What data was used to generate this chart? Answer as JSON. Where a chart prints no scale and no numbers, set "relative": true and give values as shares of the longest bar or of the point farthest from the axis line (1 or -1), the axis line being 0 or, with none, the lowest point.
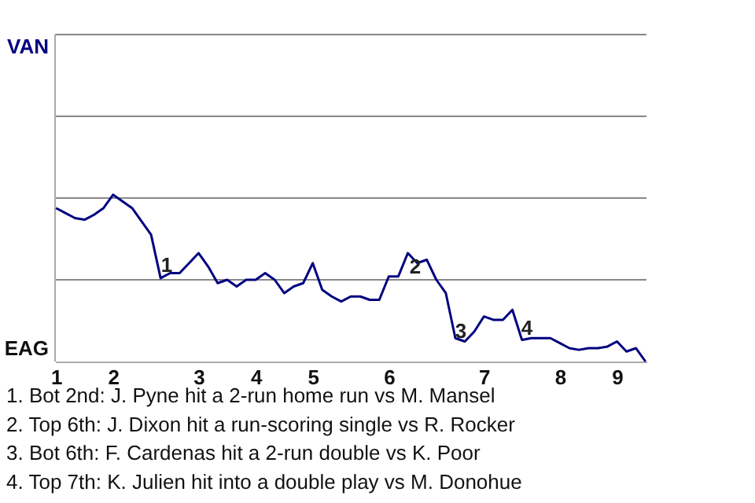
{
  "chart_data": {
    "type": "line",
    "categories": [
      "1",
      null,
      null,
      null,
      null,
      null,
      "2",
      null,
      null,
      null,
      null,
      null,
      null,
      null,
      null,
      "3",
      null,
      null,
      null,
      null,
      null,
      "4",
      null,
      null,
      null,
      null,
      null,
      "5",
      null,
      null,
      null,
      null,
      null,
      null,
      null,
      "6",
      null,
      null,
      null,
      null,
      null,
      null,
      null,
      null,
      null,
      "7",
      null,
      null,
      null,
      null,
      null,
      null,
      null,
      "8",
      null,
      null,
      null,
      null,
      null,
      "9",
      null,
      null,
      null
    ],
    "series": [
      {
        "color": "#000080",
        "values": [
          0.92,
          0.89,
          0.86,
          0.85,
          0.88,
          0.92,
          1,
          0.96,
          0.92,
          0.84,
          0.76,
          0.5,
          0.53,
          0.53,
          0.59,
          0.65,
          0.57,
          0.47,
          0.49,
          0.45,
          0.49,
          0.49,
          0.53,
          0.49,
          0.41,
          0.45,
          0.47,
          0.59,
          0.43,
          0.39,
          0.36,
          0.39,
          0.39,
          0.37,
          0.37,
          0.51,
          0.51,
          0.65,
          0.59,
          0.61,
          0.49,
          0.41,
          0.14,
          0.12,
          0.18,
          0.27,
          0.25,
          0.25,
          0.31,
          0.13,
          0.14,
          0.14,
          0.14,
          0.11,
          0.08,
          0.07,
          0.08,
          0.08,
          0.09,
          0.12,
          0.06,
          0.08,
          0
        ]
      }
    ],
    "relative": true,
    "ref_lines": [
      {
        "axis": "y",
        "value": 0.49,
        "color": "#888888"
      },
      {
        "axis": "y",
        "value": 0.98,
        "color": "#888888"
      },
      {
        "axis": "y",
        "value": 1.47,
        "color": "#888888"
      },
      {
        "axis": "y",
        "value": 1.96,
        "color": "#888888"
      }
    ],
    "annotations": [
      "VAN",
      "EAG",
      "1",
      "2",
      "3",
      "4",
      "1. Bot 2nd: J. Pyne hit a 2-run home run vs M. Mansel",
      "2. Top 6th: J. Dixon hit a run-scoring single vs R. Rocker",
      "3. Bot 6th: F. Cardenas hit a 2-run double vs K. Poor",
      "4. Top 7th: K. Julien hit into a double play vs M. Donohue"
    ],
    "line_style": "solid"
  }
}
